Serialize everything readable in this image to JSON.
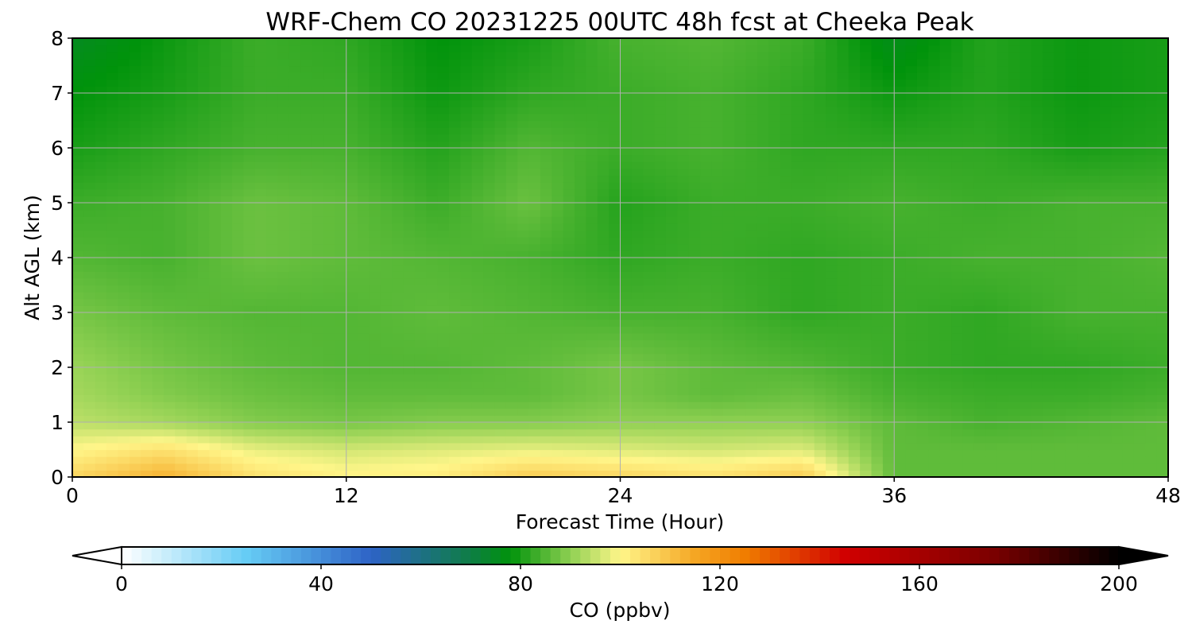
{
  "chart_data": {
    "type": "heatmap",
    "title": "WRF-Chem CO  20231225 00UTC 48h fcst at Cheeka Peak",
    "xlabel": "Forecast Time (Hour)",
    "ylabel": "Alt AGL (km)",
    "xlim": [
      0,
      48
    ],
    "ylim": [
      0,
      8
    ],
    "x_ticks": [
      0,
      12,
      24,
      36,
      48
    ],
    "y_ticks": [
      0,
      1,
      2,
      3,
      4,
      5,
      6,
      7,
      8
    ],
    "grid": true,
    "x": [
      0,
      4,
      8,
      12,
      16,
      20,
      24,
      28,
      32,
      36,
      40,
      44,
      48
    ],
    "y": [
      0,
      0.5,
      1,
      1.5,
      2,
      3,
      4,
      5,
      6,
      7,
      8
    ],
    "z": [
      [
        106,
        113,
        104,
        101,
        102,
        108,
        106,
        104,
        108,
        86,
        86,
        86,
        86
      ],
      [
        100,
        104,
        98,
        96,
        97,
        98,
        97,
        96,
        97,
        86,
        86,
        86,
        86
      ],
      [
        94,
        92,
        89,
        88,
        89,
        89,
        90,
        90,
        90,
        86,
        84,
        85,
        86
      ],
      [
        92,
        89,
        87,
        86,
        86,
        86,
        88,
        86,
        87,
        84,
        83,
        83,
        84
      ],
      [
        91,
        88,
        86,
        85,
        85,
        86,
        88,
        86,
        85,
        83,
        82,
        82,
        83
      ],
      [
        88,
        86,
        85,
        85,
        86,
        85,
        84,
        84,
        82,
        83,
        82,
        84,
        84
      ],
      [
        85,
        84,
        87,
        86,
        85,
        84,
        82,
        83,
        82,
        83,
        84,
        84,
        85
      ],
      [
        83,
        84,
        87,
        86,
        83,
        87,
        81,
        83,
        83,
        84,
        83,
        84,
        84
      ],
      [
        80,
        82,
        84,
        84,
        81,
        85,
        83,
        84,
        82,
        82,
        82,
        80,
        81
      ],
      [
        78,
        80,
        83,
        83,
        79,
        82,
        83,
        84,
        82,
        79,
        81,
        79,
        80
      ],
      [
        75,
        79,
        83,
        82,
        78,
        80,
        84,
        85,
        83,
        76,
        81,
        79,
        80
      ]
    ],
    "colorbar": {
      "label": "CO  (ppbv)",
      "min": 0,
      "max": 200,
      "ticks": [
        0,
        40,
        80,
        120,
        160,
        200
      ],
      "extend": "both",
      "stops": [
        {
          "v": 0,
          "c": "#ffffff"
        },
        {
          "v": 25,
          "c": "#66ccf5"
        },
        {
          "v": 50,
          "c": "#2e63c6"
        },
        {
          "v": 70,
          "c": "#0e7d45"
        },
        {
          "v": 78,
          "c": "#00930b"
        },
        {
          "v": 90,
          "c": "#8fd052"
        },
        {
          "v": 100,
          "c": "#fff68a"
        },
        {
          "v": 115,
          "c": "#f5a623"
        },
        {
          "v": 125,
          "c": "#f07d00"
        },
        {
          "v": 145,
          "c": "#d10000"
        },
        {
          "v": 175,
          "c": "#7a0000"
        },
        {
          "v": 200,
          "c": "#000000"
        }
      ]
    }
  }
}
